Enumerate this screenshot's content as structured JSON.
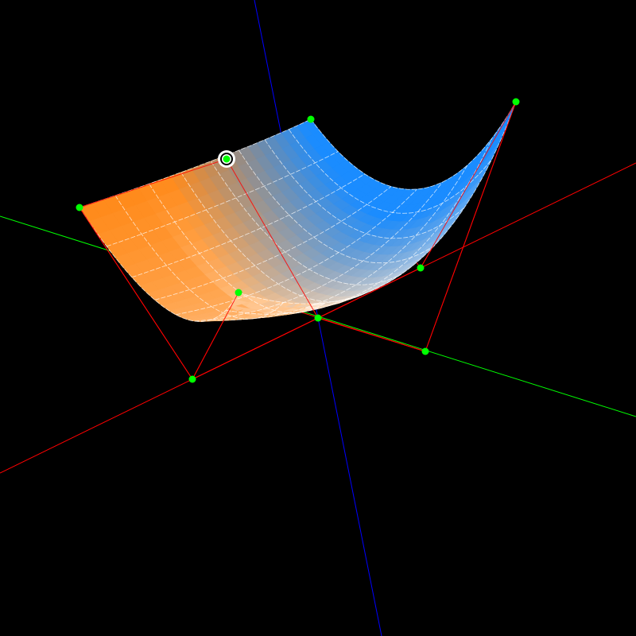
{
  "scene": {
    "background": "#000000",
    "axes": {
      "x_axis_color": "#ff0000",
      "y_axis_color": "#00ff00",
      "z_axis_color": "#0000ff"
    },
    "surface": {
      "type": "biquadratic-bezier-patch",
      "color_front": "#1a8cff",
      "color_back": "#ff8a1a",
      "color_mid": "#ffffff",
      "grid_lines": 8
    },
    "control_net": {
      "line_color": "#ff0000",
      "point_color": "#00ff00",
      "selected_point_ring_color": "#ffffff"
    }
  }
}
